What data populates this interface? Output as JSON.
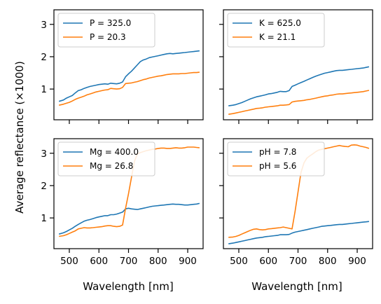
{
  "figure": {
    "ylabel": "Average reflectance (×1000)",
    "xlabel": "Wavelength [nm]"
  },
  "colors": {
    "series_1": "#1f77b4",
    "series_2": "#ff7f0e"
  },
  "chart_data": [
    {
      "type": "line",
      "legend_position": "top-left",
      "grid": false,
      "xlim": [
        448,
        952
      ],
      "ylim": [
        0.05,
        3.45
      ],
      "xticks": [
        500,
        600,
        700,
        800,
        900
      ],
      "xticklabels": [],
      "yticks": [
        1,
        2,
        3
      ],
      "yticklabels": [
        "1",
        "2",
        "3"
      ],
      "x": [
        465,
        480,
        490,
        500,
        510,
        520,
        530,
        540,
        550,
        560,
        570,
        580,
        590,
        600,
        610,
        620,
        630,
        640,
        650,
        660,
        670,
        680,
        690,
        700,
        710,
        720,
        730,
        740,
        750,
        760,
        770,
        780,
        790,
        800,
        810,
        820,
        830,
        840,
        850,
        860,
        870,
        880,
        890,
        900,
        910,
        920,
        930,
        940
      ],
      "series": [
        {
          "name": "P = 325.0",
          "values": [
            0.62,
            0.66,
            0.72,
            0.76,
            0.8,
            0.88,
            0.95,
            0.98,
            1.02,
            1.05,
            1.08,
            1.1,
            1.12,
            1.14,
            1.15,
            1.16,
            1.15,
            1.18,
            1.17,
            1.16,
            1.18,
            1.22,
            1.38,
            1.47,
            1.55,
            1.65,
            1.75,
            1.85,
            1.9,
            1.93,
            1.97,
            1.99,
            2.01,
            2.03,
            2.05,
            2.07,
            2.09,
            2.1,
            2.09,
            2.1,
            2.11,
            2.12,
            2.13,
            2.14,
            2.15,
            2.16,
            2.17,
            2.18
          ]
        },
        {
          "name": "P = 20.3",
          "values": [
            0.5,
            0.53,
            0.56,
            0.59,
            0.63,
            0.68,
            0.72,
            0.75,
            0.78,
            0.82,
            0.85,
            0.88,
            0.91,
            0.93,
            0.95,
            0.97,
            0.98,
            1.02,
            1.01,
            1.0,
            1.01,
            1.05,
            1.17,
            1.18,
            1.19,
            1.21,
            1.23,
            1.26,
            1.29,
            1.31,
            1.34,
            1.36,
            1.38,
            1.4,
            1.41,
            1.43,
            1.45,
            1.46,
            1.47,
            1.47,
            1.47,
            1.48,
            1.48,
            1.49,
            1.5,
            1.51,
            1.51,
            1.52
          ]
        }
      ]
    },
    {
      "type": "line",
      "legend_position": "top-left",
      "grid": false,
      "xlim": [
        448,
        952
      ],
      "ylim": [
        0.05,
        3.45
      ],
      "xticks": [
        500,
        600,
        700,
        800,
        900
      ],
      "xticklabels": [],
      "yticks": [
        1,
        2,
        3
      ],
      "yticklabels": [],
      "x": [
        465,
        480,
        490,
        500,
        510,
        520,
        530,
        540,
        550,
        560,
        570,
        580,
        590,
        600,
        610,
        620,
        630,
        640,
        650,
        660,
        670,
        680,
        690,
        700,
        710,
        720,
        730,
        740,
        750,
        760,
        770,
        780,
        790,
        800,
        810,
        820,
        830,
        840,
        850,
        860,
        870,
        880,
        890,
        900,
        910,
        920,
        930,
        940
      ],
      "series": [
        {
          "name": "K = 625.0",
          "values": [
            0.48,
            0.5,
            0.52,
            0.55,
            0.58,
            0.62,
            0.66,
            0.7,
            0.73,
            0.76,
            0.78,
            0.8,
            0.82,
            0.85,
            0.86,
            0.88,
            0.9,
            0.93,
            0.92,
            0.92,
            0.95,
            1.08,
            1.12,
            1.16,
            1.2,
            1.24,
            1.28,
            1.32,
            1.36,
            1.4,
            1.43,
            1.46,
            1.49,
            1.51,
            1.53,
            1.55,
            1.57,
            1.58,
            1.58,
            1.59,
            1.6,
            1.61,
            1.62,
            1.63,
            1.64,
            1.65,
            1.67,
            1.69
          ]
        },
        {
          "name": "K = 21.1",
          "values": [
            0.22,
            0.24,
            0.26,
            0.28,
            0.3,
            0.32,
            0.34,
            0.36,
            0.38,
            0.4,
            0.41,
            0.42,
            0.44,
            0.45,
            0.46,
            0.47,
            0.48,
            0.5,
            0.5,
            0.51,
            0.52,
            0.6,
            0.62,
            0.63,
            0.64,
            0.65,
            0.67,
            0.68,
            0.7,
            0.72,
            0.74,
            0.76,
            0.78,
            0.79,
            0.81,
            0.82,
            0.84,
            0.85,
            0.85,
            0.86,
            0.87,
            0.88,
            0.89,
            0.9,
            0.91,
            0.92,
            0.94,
            0.96
          ]
        }
      ]
    },
    {
      "type": "line",
      "legend_position": "top-left",
      "grid": false,
      "xlim": [
        448,
        952
      ],
      "ylim": [
        0.05,
        3.45
      ],
      "xticks": [
        500,
        600,
        700,
        800,
        900
      ],
      "xticklabels": [
        "500",
        "600",
        "700",
        "800",
        "900"
      ],
      "yticks": [
        1,
        2,
        3
      ],
      "yticklabels": [
        "1",
        "2",
        "3"
      ],
      "x": [
        465,
        480,
        490,
        500,
        510,
        520,
        530,
        540,
        550,
        560,
        570,
        580,
        590,
        600,
        610,
        620,
        630,
        640,
        650,
        660,
        670,
        680,
        690,
        700,
        710,
        720,
        730,
        740,
        750,
        760,
        770,
        780,
        790,
        800,
        810,
        820,
        830,
        840,
        850,
        860,
        870,
        880,
        890,
        900,
        910,
        920,
        930,
        940
      ],
      "series": [
        {
          "name": "Mg = 400.0",
          "values": [
            0.5,
            0.54,
            0.58,
            0.63,
            0.68,
            0.74,
            0.8,
            0.85,
            0.9,
            0.93,
            0.95,
            0.98,
            1.01,
            1.03,
            1.05,
            1.07,
            1.07,
            1.1,
            1.1,
            1.12,
            1.15,
            1.18,
            1.28,
            1.3,
            1.28,
            1.27,
            1.26,
            1.28,
            1.3,
            1.32,
            1.34,
            1.36,
            1.37,
            1.38,
            1.39,
            1.4,
            1.41,
            1.42,
            1.43,
            1.42,
            1.42,
            1.41,
            1.4,
            1.4,
            1.41,
            1.42,
            1.43,
            1.45
          ]
        },
        {
          "name": "Mg = 26.8",
          "values": [
            0.43,
            0.45,
            0.48,
            0.52,
            0.56,
            0.6,
            0.66,
            0.68,
            0.7,
            0.69,
            0.69,
            0.7,
            0.71,
            0.72,
            0.73,
            0.75,
            0.76,
            0.76,
            0.74,
            0.73,
            0.74,
            0.78,
            1.3,
            1.75,
            2.25,
            2.75,
            2.98,
            3.02,
            3.05,
            3.08,
            3.1,
            3.12,
            3.13,
            3.15,
            3.16,
            3.16,
            3.15,
            3.15,
            3.16,
            3.17,
            3.16,
            3.16,
            3.17,
            3.19,
            3.19,
            3.19,
            3.18,
            3.17
          ]
        }
      ]
    },
    {
      "type": "line",
      "legend_position": "top-left",
      "grid": false,
      "xlim": [
        448,
        952
      ],
      "ylim": [
        0.05,
        3.45
      ],
      "xticks": [
        500,
        600,
        700,
        800,
        900
      ],
      "xticklabels": [
        "500",
        "600",
        "700",
        "800",
        "900"
      ],
      "yticks": [
        1,
        2,
        3
      ],
      "yticklabels": [],
      "x": [
        465,
        480,
        490,
        500,
        510,
        520,
        530,
        540,
        550,
        560,
        570,
        580,
        590,
        600,
        610,
        620,
        630,
        640,
        650,
        660,
        670,
        680,
        690,
        700,
        710,
        720,
        730,
        740,
        750,
        760,
        770,
        780,
        790,
        800,
        810,
        820,
        830,
        840,
        850,
        860,
        870,
        880,
        890,
        900,
        910,
        920,
        930,
        940
      ],
      "series": [
        {
          "name": "pH = 7.8",
          "values": [
            0.2,
            0.22,
            0.24,
            0.26,
            0.28,
            0.3,
            0.32,
            0.34,
            0.36,
            0.38,
            0.39,
            0.4,
            0.42,
            0.43,
            0.44,
            0.45,
            0.46,
            0.48,
            0.48,
            0.48,
            0.49,
            0.53,
            0.56,
            0.58,
            0.6,
            0.62,
            0.64,
            0.66,
            0.68,
            0.7,
            0.72,
            0.74,
            0.75,
            0.76,
            0.77,
            0.78,
            0.79,
            0.8,
            0.8,
            0.81,
            0.82,
            0.83,
            0.84,
            0.85,
            0.86,
            0.87,
            0.88,
            0.89
          ]
        },
        {
          "name": "pH = 5.6",
          "values": [
            0.4,
            0.41,
            0.43,
            0.46,
            0.5,
            0.54,
            0.58,
            0.62,
            0.65,
            0.66,
            0.64,
            0.63,
            0.64,
            0.66,
            0.67,
            0.68,
            0.69,
            0.7,
            0.72,
            0.7,
            0.68,
            0.66,
            1.2,
            1.8,
            2.4,
            2.7,
            2.85,
            2.92,
            2.98,
            3.05,
            3.1,
            3.12,
            3.14,
            3.16,
            3.18,
            3.2,
            3.22,
            3.24,
            3.22,
            3.21,
            3.2,
            3.25,
            3.26,
            3.25,
            3.22,
            3.2,
            3.18,
            3.15
          ]
        }
      ]
    }
  ]
}
